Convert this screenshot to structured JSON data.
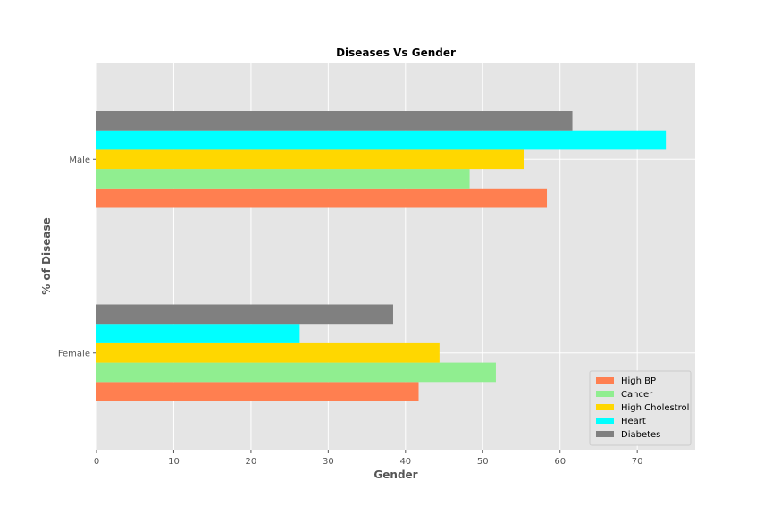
{
  "chart_data": {
    "type": "bar",
    "orientation": "horizontal",
    "title": "Diseases Vs Gender",
    "xlabel": "Gender",
    "ylabel": "% of Disease",
    "categories": [
      "Female",
      "Male"
    ],
    "xlim": [
      0,
      77.5
    ],
    "xticks": [
      0,
      10,
      20,
      30,
      40,
      50,
      60,
      70
    ],
    "grid": true,
    "legend_position": "bottom-right",
    "series": [
      {
        "name": "High BP",
        "color": "#ff7f50",
        "values": [
          41.7,
          58.3
        ]
      },
      {
        "name": "Cancer",
        "color": "#90ee90",
        "values": [
          51.7,
          48.3
        ]
      },
      {
        "name": "High Cholestrol",
        "color": "#ffd700",
        "values": [
          44.4,
          55.4
        ]
      },
      {
        "name": "Heart",
        "color": "#00ffff",
        "values": [
          26.3,
          73.7
        ]
      },
      {
        "name": "Diabetes",
        "color": "#808080",
        "values": [
          38.4,
          61.6
        ]
      }
    ]
  }
}
